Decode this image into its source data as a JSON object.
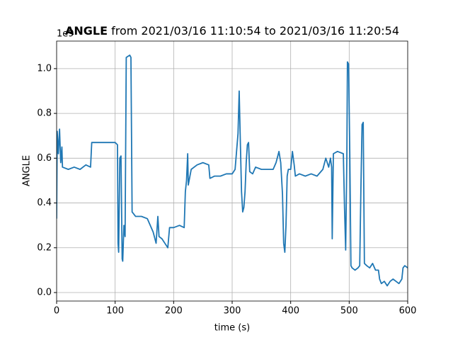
{
  "chart_data": {
    "type": "line",
    "title": "ANGLE",
    "title_suffix": "from 2021/03/16 11:10:54 to 2021/03/16 11:20:54",
    "xlabel": "time (s)",
    "ylabel": "ANGLE",
    "offset_text": "1e9",
    "xlim": [
      0,
      600
    ],
    "ylim": [
      -0.038,
      1.123
    ],
    "xticks": [
      0,
      100,
      200,
      300,
      400,
      500,
      600
    ],
    "yticks": [
      {
        "value": 0,
        "label": "0.0"
      },
      0.2,
      0.4,
      0.6,
      0.8,
      {
        "value": 1,
        "label": "1.0"
      }
    ],
    "grid": true,
    "series": [
      {
        "name": "ANGLE",
        "color": "#1f77b4",
        "x": [
          0,
          1,
          3,
          5,
          7,
          9,
          10,
          20,
          30,
          40,
          50,
          58,
          60,
          70,
          80,
          90,
          100,
          104,
          105,
          106,
          108,
          110,
          112,
          113,
          115,
          117,
          119,
          125,
          127,
          129,
          135,
          145,
          155,
          160,
          165,
          170,
          173,
          175,
          180,
          185,
          190,
          193,
          200,
          210,
          218,
          220,
          222,
          224,
          225,
          230,
          240,
          250,
          260,
          262,
          270,
          280,
          290,
          300,
          305,
          310,
          312,
          314,
          316,
          318,
          320,
          322,
          324,
          326,
          328,
          330,
          335,
          340,
          350,
          360,
          370,
          375,
          380,
          383,
          386,
          388,
          390,
          392,
          394,
          396,
          400,
          403,
          406,
          408,
          415,
          425,
          435,
          445,
          455,
          460,
          465,
          468,
          470,
          471,
          473,
          480,
          490,
          492,
          494,
          496,
          497,
          499,
          501,
          503,
          505,
          510,
          515,
          518,
          520,
          522,
          524,
          526,
          530,
          535,
          540,
          545,
          550,
          552,
          555,
          560,
          565,
          570,
          575,
          580,
          585,
          590,
          592,
          595,
          600
        ],
        "values": [
          0.33,
          0.72,
          0.62,
          0.73,
          0.58,
          0.65,
          0.56,
          0.55,
          0.56,
          0.55,
          0.57,
          0.56,
          0.67,
          0.67,
          0.67,
          0.67,
          0.67,
          0.66,
          0.22,
          0.18,
          0.6,
          0.61,
          0.15,
          0.14,
          0.3,
          0.25,
          1.05,
          1.06,
          1.05,
          0.36,
          0.34,
          0.34,
          0.33,
          0.3,
          0.27,
          0.22,
          0.34,
          0.25,
          0.24,
          0.22,
          0.2,
          0.29,
          0.29,
          0.3,
          0.29,
          0.45,
          0.5,
          0.62,
          0.48,
          0.55,
          0.57,
          0.58,
          0.57,
          0.51,
          0.52,
          0.52,
          0.53,
          0.53,
          0.55,
          0.71,
          0.9,
          0.67,
          0.45,
          0.36,
          0.38,
          0.45,
          0.58,
          0.66,
          0.67,
          0.54,
          0.53,
          0.56,
          0.55,
          0.55,
          0.55,
          0.58,
          0.63,
          0.58,
          0.44,
          0.22,
          0.18,
          0.3,
          0.52,
          0.55,
          0.55,
          0.63,
          0.57,
          0.52,
          0.53,
          0.52,
          0.53,
          0.52,
          0.55,
          0.6,
          0.56,
          0.6,
          0.56,
          0.24,
          0.62,
          0.63,
          0.62,
          0.38,
          0.19,
          0.6,
          1.03,
          1.02,
          0.63,
          0.12,
          0.11,
          0.1,
          0.11,
          0.12,
          0.46,
          0.75,
          0.76,
          0.13,
          0.12,
          0.11,
          0.13,
          0.1,
          0.1,
          0.06,
          0.04,
          0.05,
          0.03,
          0.05,
          0.06,
          0.05,
          0.04,
          0.06,
          0.11,
          0.12,
          0.11
        ]
      }
    ]
  }
}
